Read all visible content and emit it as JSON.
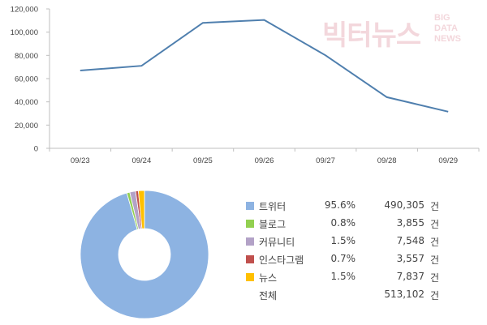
{
  "watermark": {
    "main": "빅터뉴스",
    "sub": [
      "BIG",
      "DATA",
      "NEWS"
    ]
  },
  "chart_data": [
    {
      "type": "line",
      "categories": [
        "09/23",
        "09/24",
        "09/25",
        "09/26",
        "09/27",
        "09/28",
        "09/29"
      ],
      "series": [
        {
          "values": [
            67000,
            71000,
            108000,
            110500,
            80000,
            44000,
            31500
          ]
        }
      ],
      "y_ticks": [
        "0",
        "20,000",
        "40,000",
        "60,000",
        "80,000",
        "100,000",
        "120,000"
      ],
      "ylim": [
        0,
        120000
      ],
      "grid": false,
      "color": "#4f7fae"
    },
    {
      "type": "pie",
      "donut": true,
      "legend_position": "right",
      "categories": [
        "트위터",
        "블로그",
        "커뮤니티",
        "인스타그램",
        "뉴스"
      ],
      "percent_labels": [
        "95.6%",
        "0.8%",
        "1.5%",
        "0.7%",
        "1.5%"
      ],
      "count_labels": [
        "490,305",
        "3,855",
        "7,548",
        "3,557",
        "7,837"
      ],
      "values": [
        490305,
        3855,
        7548,
        3557,
        7837
      ],
      "colors": [
        "#8db3e2",
        "#92d050",
        "#b3a2c7",
        "#c0504d",
        "#ffc000"
      ],
      "unit": "건",
      "total_label": "전체",
      "total_count": "513,102"
    }
  ]
}
